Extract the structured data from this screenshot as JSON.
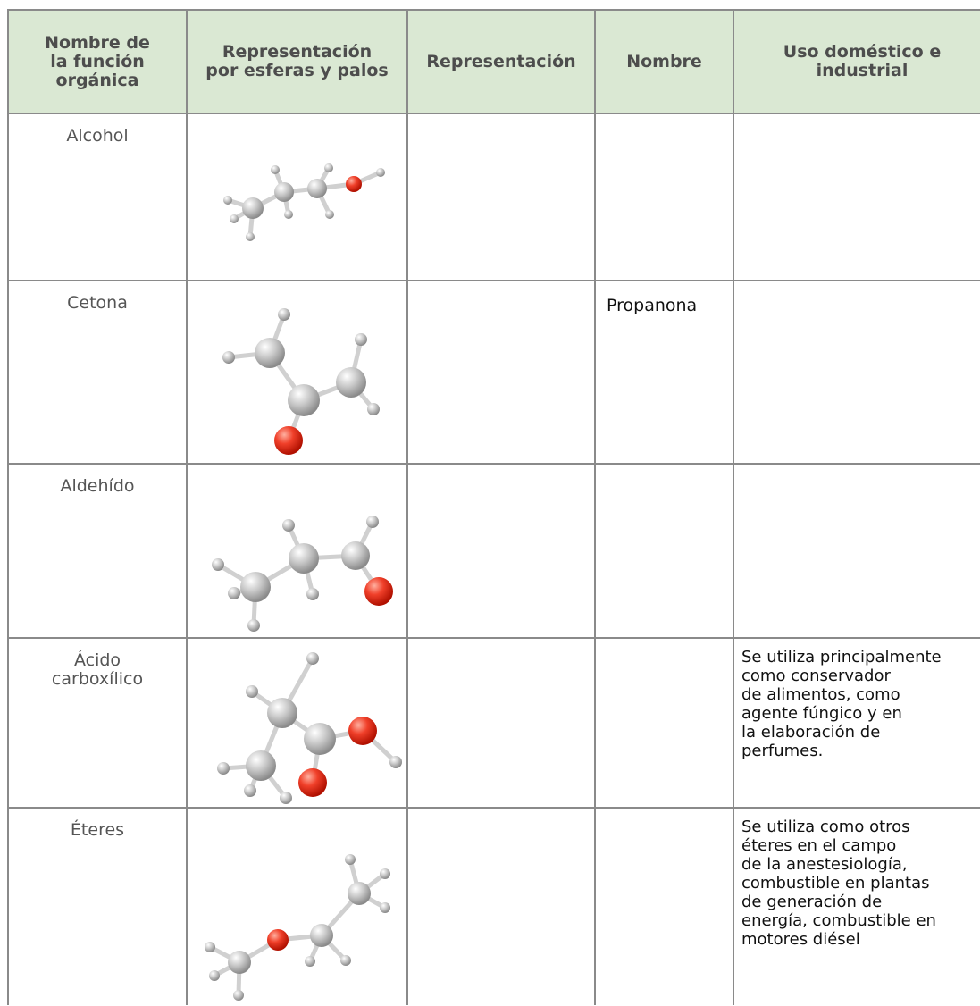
{
  "header": {
    "columns": [
      "Nombre de\nla función\norgánica",
      "Representación\npor esferas y palos",
      "Representación",
      "Nombre",
      "Uso doméstico e\nindustrial"
    ]
  },
  "table": {
    "rows": [
      {
        "function": "Alcohol"
      },
      {
        "function": "Cetona",
        "name": "Propanona"
      },
      {
        "function": "Aldehído"
      },
      {
        "function": "Ácido\ncarboxílico",
        "use": "Se utiliza principalmente\ncomo conservador\nde alimentos, como\nagente fúngico y en\nla elaboración de\nperfumes."
      },
      {
        "function": "Éteres",
        "use": "Se utiliza como otros\néteres en el campo\nde la anestesiología,\ncombustible en plantas\nde generación de\nenergía, combustible en\nmotores diésel"
      }
    ]
  }
}
